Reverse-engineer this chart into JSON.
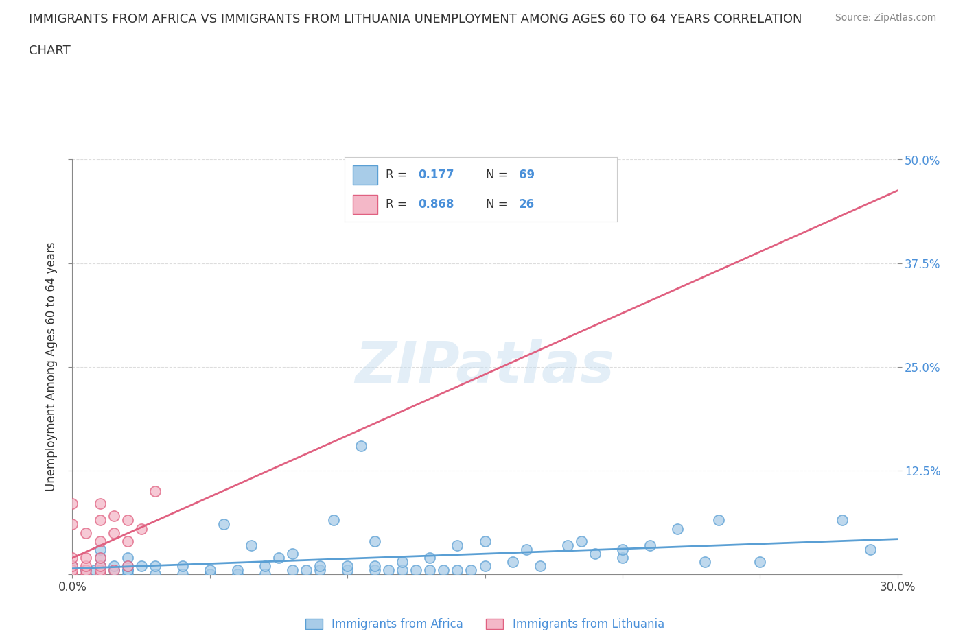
{
  "title_line1": "IMMIGRANTS FROM AFRICA VS IMMIGRANTS FROM LITHUANIA UNEMPLOYMENT AMONG AGES 60 TO 64 YEARS CORRELATION",
  "title_line2": "CHART",
  "source_text": "Source: ZipAtlas.com",
  "ylabel": "Unemployment Among Ages 60 to 64 years",
  "xlim": [
    0.0,
    0.3
  ],
  "ylim": [
    0.0,
    0.5
  ],
  "xticks": [
    0.0,
    0.05,
    0.1,
    0.15,
    0.2,
    0.25,
    0.3
  ],
  "xticklabels": [
    "0.0%",
    "",
    "",
    "",
    "",
    "",
    "30.0%"
  ],
  "ytick_positions": [
    0.0,
    0.125,
    0.25,
    0.375,
    0.5
  ],
  "yticklabels": [
    "",
    "12.5%",
    "25.0%",
    "37.5%",
    "50.0%"
  ],
  "africa_R": 0.177,
  "africa_N": 69,
  "lithuania_R": 0.868,
  "lithuania_N": 26,
  "africa_color": "#a8cce8",
  "africa_edge_color": "#5a9fd4",
  "lithuania_color": "#f4b8c8",
  "lithuania_edge_color": "#e06080",
  "africa_line_color": "#5a9fd4",
  "lithuania_line_color": "#e06080",
  "legend_color": "#4a90d9",
  "watermark_color": "#c8dff0",
  "background_color": "#ffffff",
  "grid_color": "#dddddd",
  "title_fontsize": 13,
  "axis_label_fontsize": 12,
  "tick_fontsize": 12,
  "africa_scatter_x": [
    0.0,
    0.005,
    0.008,
    0.01,
    0.01,
    0.01,
    0.01,
    0.01,
    0.01,
    0.015,
    0.015,
    0.02,
    0.02,
    0.02,
    0.02,
    0.02,
    0.025,
    0.03,
    0.03,
    0.04,
    0.04,
    0.05,
    0.05,
    0.055,
    0.06,
    0.06,
    0.065,
    0.07,
    0.07,
    0.075,
    0.08,
    0.08,
    0.085,
    0.09,
    0.09,
    0.095,
    0.1,
    0.1,
    0.105,
    0.11,
    0.11,
    0.11,
    0.115,
    0.12,
    0.12,
    0.125,
    0.13,
    0.13,
    0.135,
    0.14,
    0.14,
    0.145,
    0.15,
    0.15,
    0.16,
    0.165,
    0.17,
    0.18,
    0.185,
    0.19,
    0.2,
    0.2,
    0.21,
    0.22,
    0.23,
    0.235,
    0.25,
    0.28,
    0.29
  ],
  "africa_scatter_y": [
    0.01,
    0.005,
    0.005,
    0.0,
    0.0,
    0.005,
    0.01,
    0.02,
    0.03,
    0.005,
    0.01,
    0.0,
    0.005,
    0.005,
    0.01,
    0.02,
    0.01,
    0.0,
    0.01,
    0.0,
    0.01,
    0.0,
    0.005,
    0.06,
    0.0,
    0.005,
    0.035,
    0.0,
    0.01,
    0.02,
    0.005,
    0.025,
    0.005,
    0.005,
    0.01,
    0.065,
    0.005,
    0.01,
    0.155,
    0.005,
    0.01,
    0.04,
    0.005,
    0.005,
    0.015,
    0.005,
    0.005,
    0.02,
    0.005,
    0.005,
    0.035,
    0.005,
    0.01,
    0.04,
    0.015,
    0.03,
    0.01,
    0.035,
    0.04,
    0.025,
    0.02,
    0.03,
    0.035,
    0.055,
    0.015,
    0.065,
    0.015,
    0.065,
    0.03
  ],
  "lithuania_scatter_x": [
    0.0,
    0.0,
    0.0,
    0.0,
    0.0,
    0.0,
    0.005,
    0.005,
    0.005,
    0.005,
    0.005,
    0.01,
    0.01,
    0.01,
    0.01,
    0.01,
    0.01,
    0.01,
    0.015,
    0.015,
    0.015,
    0.02,
    0.02,
    0.02,
    0.025,
    0.03
  ],
  "lithuania_scatter_y": [
    0.0,
    0.005,
    0.01,
    0.02,
    0.06,
    0.085,
    0.0,
    0.005,
    0.01,
    0.02,
    0.05,
    0.0,
    0.005,
    0.01,
    0.02,
    0.04,
    0.065,
    0.085,
    0.005,
    0.05,
    0.07,
    0.01,
    0.04,
    0.065,
    0.055,
    0.1
  ]
}
